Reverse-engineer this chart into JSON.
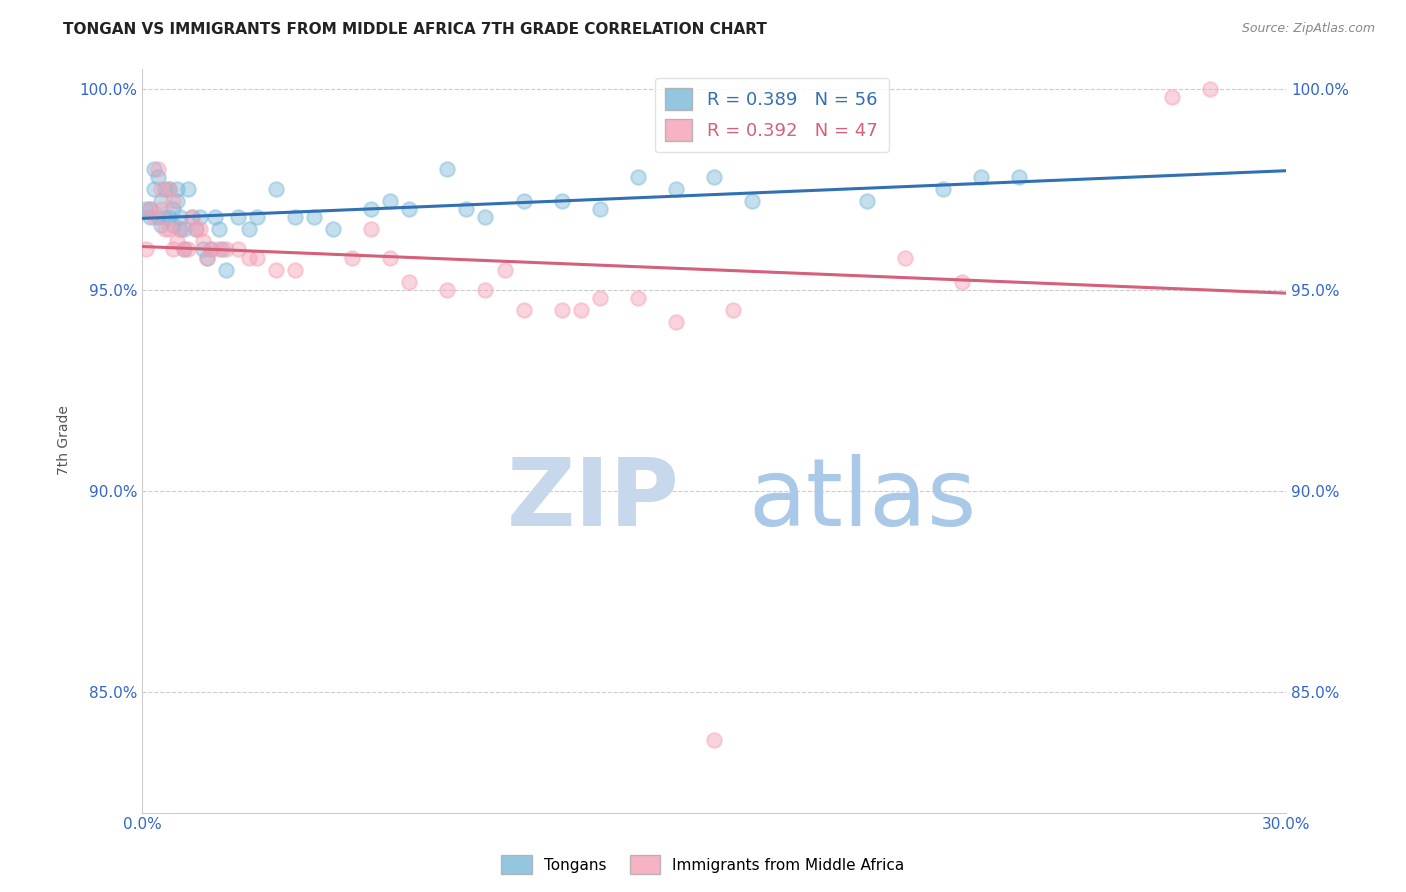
{
  "title": "TONGAN VS IMMIGRANTS FROM MIDDLE AFRICA 7TH GRADE CORRELATION CHART",
  "source": "Source: ZipAtlas.com",
  "ylabel": "7th Grade",
  "xlim": [
    0.0,
    0.3
  ],
  "ylim": [
    0.82,
    1.005
  ],
  "xticks": [
    0.0,
    0.05,
    0.1,
    0.15,
    0.2,
    0.25,
    0.3
  ],
  "xticklabels": [
    "0.0%",
    "",
    "",
    "",
    "",
    "",
    "30.0%"
  ],
  "yticks": [
    0.85,
    0.9,
    0.95,
    1.0
  ],
  "yticklabels": [
    "85.0%",
    "90.0%",
    "95.0%",
    "100.0%"
  ],
  "legend_blue_label": "R = 0.389   N = 56",
  "legend_pink_label": "R = 0.392   N = 47",
  "series_blue_label": "Tongans",
  "series_pink_label": "Immigrants from Middle Africa",
  "blue_color": "#7ab8d9",
  "pink_color": "#f4a0b5",
  "blue_line_color": "#3070b3",
  "pink_line_color": "#d4607a",
  "watermark_zip": "ZIP",
  "watermark_atlas": "atlas",
  "watermark_zip_color": "#c8d8ec",
  "watermark_atlas_color": "#aac8e8",
  "background_color": "#ffffff",
  "grid_color": "#cccccc",
  "marker_size": 110,
  "marker_alpha": 0.45,
  "line_width": 2.2,
  "blue_x": [
    0.001,
    0.002,
    0.002,
    0.003,
    0.003,
    0.004,
    0.004,
    0.005,
    0.005,
    0.006,
    0.006,
    0.007,
    0.007,
    0.008,
    0.008,
    0.009,
    0.009,
    0.01,
    0.01,
    0.011,
    0.011,
    0.012,
    0.013,
    0.014,
    0.015,
    0.016,
    0.017,
    0.018,
    0.019,
    0.02,
    0.021,
    0.022,
    0.025,
    0.028,
    0.03,
    0.035,
    0.04,
    0.045,
    0.05,
    0.06,
    0.065,
    0.07,
    0.08,
    0.085,
    0.09,
    0.1,
    0.11,
    0.12,
    0.13,
    0.14,
    0.15,
    0.16,
    0.19,
    0.21,
    0.22,
    0.23
  ],
  "blue_y": [
    0.97,
    0.97,
    0.968,
    0.98,
    0.975,
    0.978,
    0.968,
    0.972,
    0.966,
    0.968,
    0.975,
    0.975,
    0.968,
    0.966,
    0.97,
    0.975,
    0.972,
    0.968,
    0.965,
    0.965,
    0.96,
    0.975,
    0.968,
    0.965,
    0.968,
    0.96,
    0.958,
    0.96,
    0.968,
    0.965,
    0.96,
    0.955,
    0.968,
    0.965,
    0.968,
    0.975,
    0.968,
    0.968,
    0.965,
    0.97,
    0.972,
    0.97,
    0.98,
    0.97,
    0.968,
    0.972,
    0.972,
    0.97,
    0.978,
    0.975,
    0.978,
    0.972,
    0.972,
    0.975,
    0.978,
    0.978
  ],
  "pink_x": [
    0.001,
    0.002,
    0.003,
    0.004,
    0.005,
    0.005,
    0.006,
    0.007,
    0.007,
    0.008,
    0.008,
    0.009,
    0.01,
    0.011,
    0.012,
    0.013,
    0.014,
    0.015,
    0.016,
    0.017,
    0.018,
    0.02,
    0.022,
    0.025,
    0.028,
    0.03,
    0.035,
    0.04,
    0.055,
    0.06,
    0.065,
    0.07,
    0.08,
    0.09,
    0.095,
    0.1,
    0.11,
    0.115,
    0.12,
    0.13,
    0.14,
    0.15,
    0.155,
    0.2,
    0.215,
    0.27,
    0.28
  ],
  "pink_y": [
    0.96,
    0.97,
    0.968,
    0.98,
    0.975,
    0.97,
    0.965,
    0.975,
    0.965,
    0.972,
    0.96,
    0.962,
    0.965,
    0.96,
    0.96,
    0.968,
    0.965,
    0.965,
    0.962,
    0.958,
    0.96,
    0.96,
    0.96,
    0.96,
    0.958,
    0.958,
    0.955,
    0.955,
    0.958,
    0.965,
    0.958,
    0.952,
    0.95,
    0.95,
    0.955,
    0.945,
    0.945,
    0.945,
    0.948,
    0.948,
    0.942,
    0.838,
    0.945,
    0.958,
    0.952,
    0.998,
    1.0
  ]
}
